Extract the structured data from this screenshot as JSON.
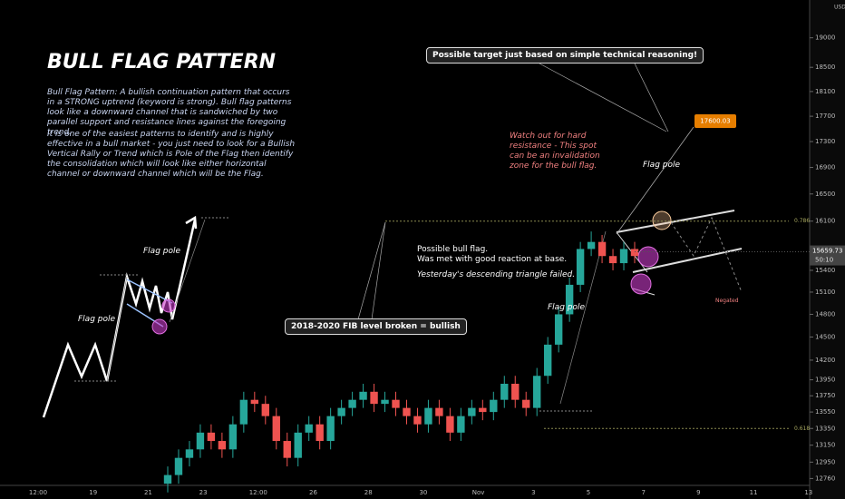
{
  "chart_data": {
    "type": "candlestick",
    "title": "BULL FLAG PATTERN",
    "description": [
      "Bull Flag Pattern: A bullish continuation pattern that occurs in a STRONG uptrend (keyword is strong). Bull flag patterns look like a downward channel that is sandwiched by two parallel support and resistance lines against the foregoing trend.",
      "It is one of the easiest patterns to identify and is highly effective in a bull market - you just need to look for a Bullish Vertical Rally or Trend which is Pole of the Flag then identify the consolidation which will look like either horizontal channel or downward channel which will be the Flag."
    ],
    "target_note": "Possible target just based on simple technical reasoning!",
    "target_price": 17600.03,
    "resistance_note": "Watch out for hard resistance - This spot can be an invalidation zone for the bull flag.",
    "flag_pole_labels": [
      "Flag pole",
      "Flag pole",
      "Flag pole"
    ],
    "bull_flag_note": [
      "Possible bull flag.",
      "Was met with good reaction at base.",
      "Yesterday's descending triangle failed."
    ],
    "fib_note": "2018-2020 FIB level broken = bullish",
    "negated_label": "Negated",
    "fib_levels": [
      {
        "value": 16100,
        "label": "0.786"
      },
      {
        "value": 13350,
        "label": "0.618"
      }
    ],
    "current_price": 15659.73,
    "countdown": "50:10",
    "currency": "USD",
    "log_scale": true,
    "ylim": [
      12660,
      19660
    ],
    "yticks": [
      19000,
      18500,
      18100,
      17700,
      17300,
      16900,
      16500,
      16100,
      15400,
      15100,
      14800,
      14500,
      14200,
      13950,
      13750,
      13550,
      13350,
      13150,
      12950,
      12760
    ],
    "x_labels": [
      "12:00",
      "19",
      "21",
      "23",
      "12:00",
      "26",
      "28",
      "30",
      "Nov",
      "3",
      "5",
      "7",
      "9",
      "11",
      "13"
    ],
    "up_color": "#26a69a",
    "down_color": "#ef5350",
    "open": [
      12700,
      12800,
      13000,
      13100,
      13300,
      13200,
      13100,
      13400,
      13700,
      13650,
      13500,
      13200,
      13000,
      13300,
      13400,
      13200,
      13500,
      13600,
      13700,
      13800,
      13650,
      13700,
      13600,
      13500,
      13400,
      13600,
      13500,
      13300,
      13500,
      13600,
      13550,
      13700,
      13900,
      13700,
      13600,
      14000,
      14400,
      14800,
      15200,
      15700,
      15800,
      15600,
      15500,
      15700
    ],
    "high": [
      12900,
      13100,
      13200,
      13400,
      13400,
      13300,
      13500,
      13800,
      13800,
      13750,
      13600,
      13300,
      13400,
      13500,
      13500,
      13600,
      13700,
      13800,
      13900,
      13900,
      13800,
      13800,
      13700,
      13600,
      13700,
      13700,
      13600,
      13600,
      13700,
      13700,
      13800,
      14000,
      14000,
      13800,
      14100,
      14500,
      14900,
      15300,
      15800,
      15950,
      15900,
      15700,
      15800,
      15800
    ],
    "low": [
      12600,
      12700,
      12900,
      13000,
      13100,
      13000,
      13000,
      13300,
      13550,
      13400,
      13100,
      12900,
      12900,
      13200,
      13100,
      13100,
      13400,
      13500,
      13600,
      13550,
      13550,
      13500,
      13400,
      13300,
      13300,
      13400,
      13200,
      13200,
      13400,
      13450,
      13450,
      13600,
      13600,
      13500,
      13500,
      13900,
      14300,
      14700,
      15100,
      15600,
      15500,
      15400,
      15400,
      15500
    ],
    "close": [
      12800,
      13000,
      13100,
      13300,
      13200,
      13100,
      13400,
      13700,
      13650,
      13500,
      13200,
      13000,
      13300,
      13400,
      13200,
      13500,
      13600,
      13700,
      13800,
      13650,
      13700,
      13600,
      13500,
      13400,
      13600,
      13500,
      13300,
      13500,
      13600,
      13550,
      13700,
      13900,
      13700,
      13600,
      14000,
      14400,
      14800,
      15200,
      15700,
      15800,
      15600,
      15500,
      15700,
      15600
    ]
  }
}
